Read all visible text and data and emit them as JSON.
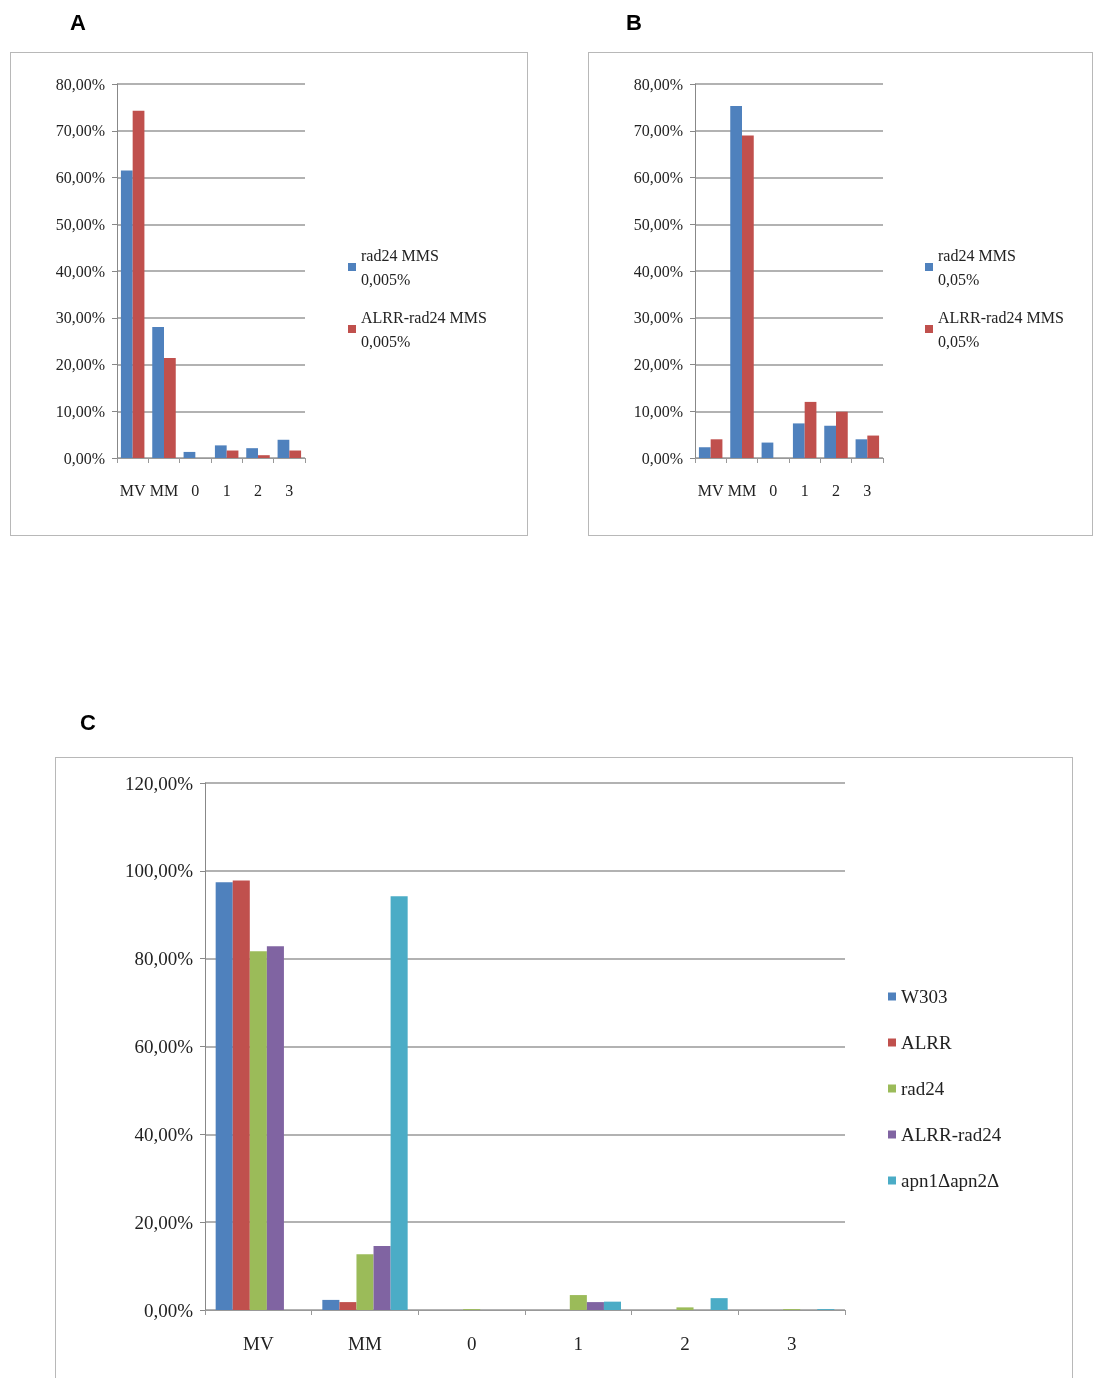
{
  "chart_data": [
    {
      "type": "bar",
      "title": "A",
      "categories": [
        "MV",
        "MM",
        "0",
        "1",
        "2",
        "3"
      ],
      "series": [
        {
          "name": "rad24 MMS 0,005%",
          "color": "#4f81bd",
          "values": [
            61.5,
            28.0,
            1.3,
            2.7,
            2.1,
            3.9
          ]
        },
        {
          "name": "ALRR-rad24 MMS 0,005%",
          "color": "#c0504d",
          "values": [
            74.3,
            21.4,
            0,
            1.6,
            0.6,
            1.6
          ]
        }
      ],
      "ylim": [
        0,
        80
      ],
      "yticks": [
        {
          "value": 0,
          "label": "0,00%"
        },
        {
          "value": 10,
          "label": "10,00%"
        },
        {
          "value": 20,
          "label": "20,00%"
        },
        {
          "value": 30,
          "label": "30,00%"
        },
        {
          "value": 40,
          "label": "40,00%"
        },
        {
          "value": 50,
          "label": "50,00%"
        },
        {
          "value": 60,
          "label": "60,00%"
        },
        {
          "value": 70,
          "label": "70,00%"
        },
        {
          "value": 80,
          "label": "80,00%"
        }
      ],
      "grid": "y",
      "legend": "right"
    },
    {
      "type": "bar",
      "title": "B",
      "categories": [
        "MV",
        "MM",
        "0",
        "1",
        "2",
        "3"
      ],
      "series": [
        {
          "name": "rad24 MMS 0,05%",
          "color": "#4f81bd",
          "values": [
            2.3,
            75.3,
            3.3,
            7.4,
            6.9,
            4.0
          ]
        },
        {
          "name": "ALRR-rad24 MMS 0,05%",
          "color": "#c0504d",
          "values": [
            4.0,
            69.0,
            0,
            12.0,
            9.9,
            4.8
          ]
        }
      ],
      "ylim": [
        0,
        80
      ],
      "yticks": [
        {
          "value": 0,
          "label": "0,00%"
        },
        {
          "value": 10,
          "label": "10,00%"
        },
        {
          "value": 20,
          "label": "20,00%"
        },
        {
          "value": 30,
          "label": "30,00%"
        },
        {
          "value": 40,
          "label": "40,00%"
        },
        {
          "value": 50,
          "label": "50,00%"
        },
        {
          "value": 60,
          "label": "60,00%"
        },
        {
          "value": 70,
          "label": "70,00%"
        },
        {
          "value": 80,
          "label": "80,00%"
        }
      ],
      "grid": "y",
      "legend": "right"
    },
    {
      "type": "bar",
      "title": "C",
      "categories": [
        "MV",
        "MM",
        "0",
        "1",
        "2",
        "3"
      ],
      "series": [
        {
          "name": "W303",
          "color": "#4f81bd",
          "values": [
            97.4,
            2.3,
            0,
            0,
            0,
            0
          ]
        },
        {
          "name": "ALRR",
          "color": "#c0504d",
          "values": [
            97.8,
            1.8,
            0,
            0,
            0,
            0
          ]
        },
        {
          "name": "rad24",
          "color": "#9bbb59",
          "values": [
            81.7,
            12.7,
            0.2,
            3.4,
            0.6,
            0.2
          ]
        },
        {
          "name": "ALRR-rad24",
          "color": "#8064a2",
          "values": [
            82.8,
            14.6,
            null,
            1.8,
            null,
            0
          ]
        },
        {
          "name": "apn1Δapn2Δ",
          "color": "#4bacc6",
          "values": [
            0,
            94.2,
            null,
            1.9,
            2.7,
            0.2
          ]
        }
      ],
      "ylim": [
        0,
        120
      ],
      "yticks": [
        {
          "value": 0,
          "label": "0,00%"
        },
        {
          "value": 20,
          "label": "20,00%"
        },
        {
          "value": 40,
          "label": "40,00%"
        },
        {
          "value": 60,
          "label": "60,00%"
        },
        {
          "value": 80,
          "label": "80,00%"
        },
        {
          "value": 100,
          "label": "100,00%"
        },
        {
          "value": 120,
          "label": "120,00%"
        }
      ],
      "grid": "y",
      "legend": "right"
    }
  ]
}
